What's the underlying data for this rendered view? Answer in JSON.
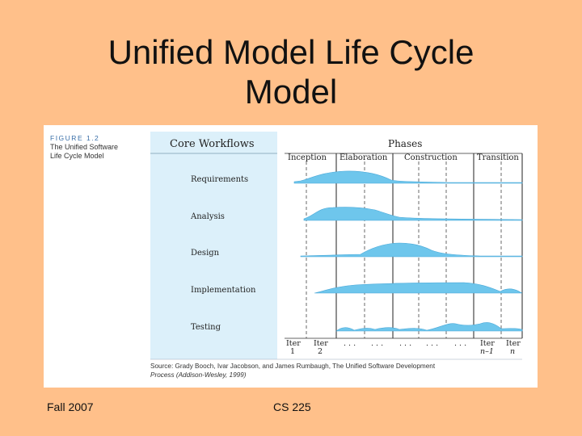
{
  "slide": {
    "title_line1": "Unified Model Life Cycle",
    "title_line2": "Model",
    "footer_left": "Fall 2007",
    "footer_center": "CS 225"
  },
  "figure": {
    "label": "FIGURE 1.2",
    "caption_line1": "The Unified Software",
    "caption_line2": "Life Cycle Model",
    "workflows_header": "Core Workflows",
    "phases_header": "Phases",
    "phases": [
      "Inception",
      "Elaboration",
      "Construction",
      "Transition"
    ],
    "workflows": [
      "Requirements",
      "Analysis",
      "Design",
      "Implementation",
      "Testing"
    ],
    "iterations": {
      "iter1_top": "Iter",
      "iter1_bottom": "1",
      "iter2_top": "Iter",
      "iter2_bottom": "2",
      "dots": ". . .",
      "itern1_top": "Iter",
      "itern1_bottom": "n–1",
      "itern_top": "Iter",
      "itern_bottom": "n"
    },
    "source_line1": "Source: Grady Booch, Ivar Jacobson, and James Rumbaugh, The Unified Software Development",
    "source_line2": "Process (Addison-Wesley, 1999)",
    "colors": {
      "panel": "#dcf0fa",
      "wave": "#6ec6ec"
    }
  }
}
